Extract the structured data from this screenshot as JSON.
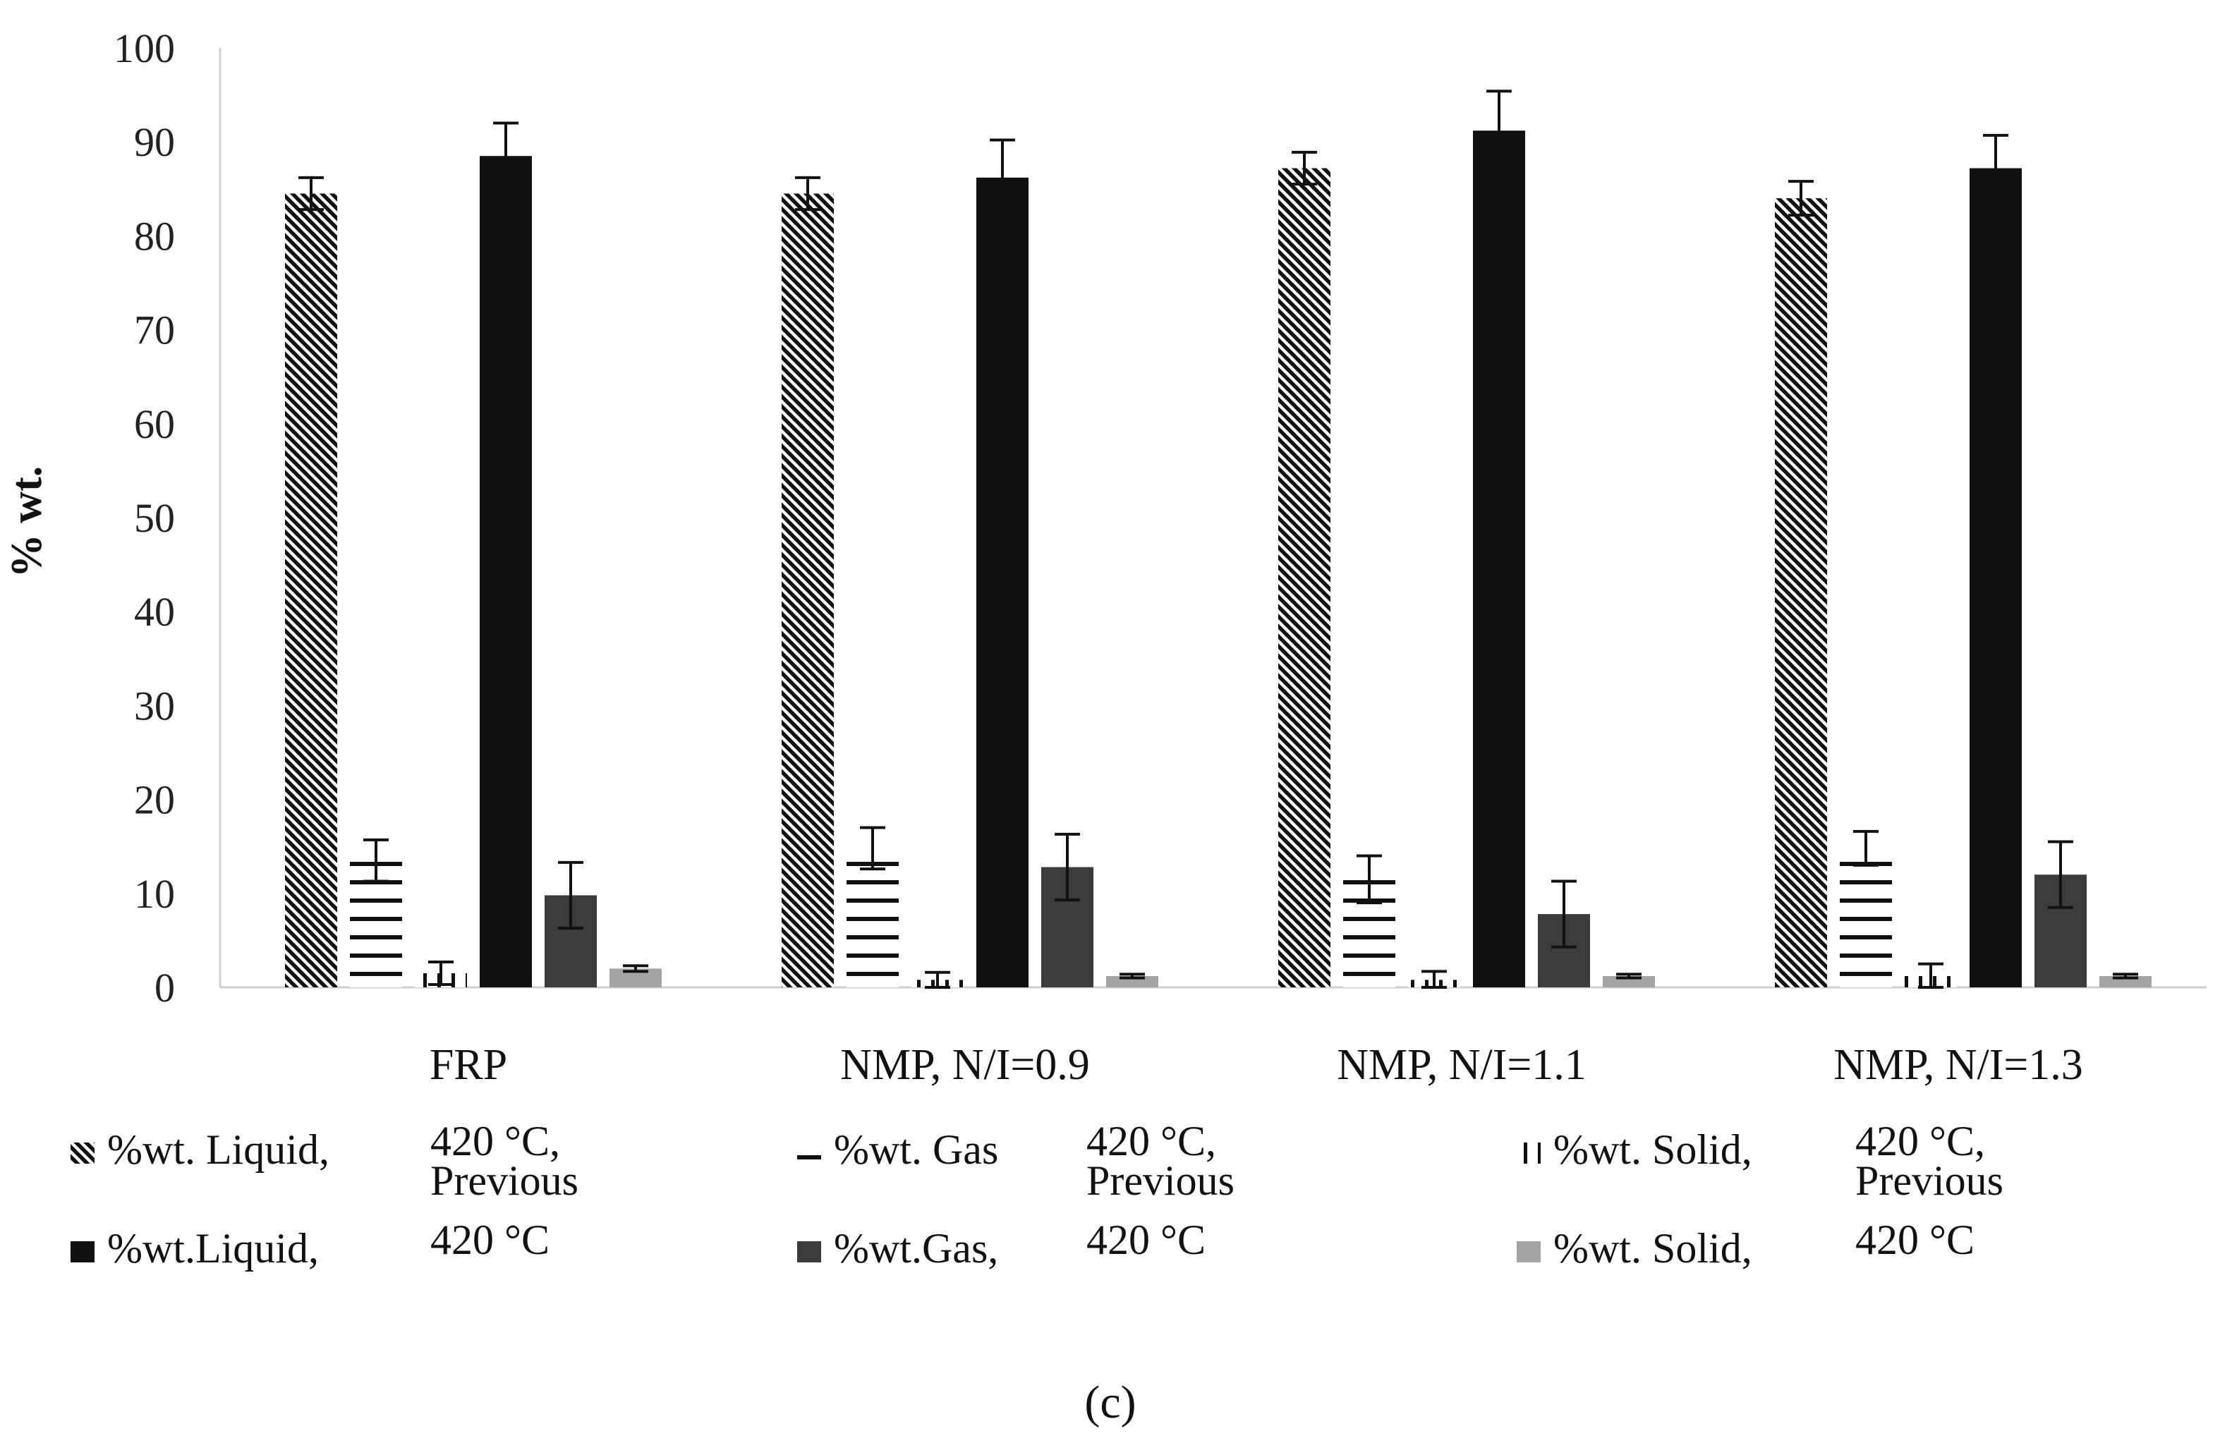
{
  "chart_data": {
    "type": "bar",
    "title": "",
    "xlabel": "",
    "ylabel": "% wt.",
    "ylim": [
      0,
      100
    ],
    "yticks": [
      0,
      10,
      20,
      30,
      40,
      50,
      60,
      70,
      80,
      90,
      100
    ],
    "grid": false,
    "legend_position": "bottom",
    "categories": [
      "FRP",
      "NMP, N/I=0.9",
      "NMP, N/I=1.1",
      "NMP, N/I=1.3"
    ],
    "series": [
      {
        "name": "%wt. Liquid,",
        "condition": [
          "420 °C,",
          "Previous"
        ],
        "pattern": "diagonal-hatch",
        "color": "#111111",
        "values": [
          84.5,
          84.5,
          87.2,
          84.0
        ],
        "errors": [
          1.7,
          1.7,
          1.7,
          1.8
        ]
      },
      {
        "name": "%wt. Gas",
        "condition": [
          "420 °C,",
          "Previous"
        ],
        "pattern": "horizontal-hatch",
        "color": "#111111",
        "values": [
          13.5,
          14.8,
          11.5,
          14.8
        ],
        "errors": [
          2.2,
          2.2,
          2.5,
          1.8
        ]
      },
      {
        "name": "%wt. Solid,",
        "condition": [
          "420 °C,",
          "Previous"
        ],
        "pattern": "vertical-hatch",
        "color": "#111111",
        "values": [
          1.5,
          0.8,
          0.8,
          1.2
        ],
        "errors": [
          1.2,
          0.8,
          0.9,
          1.3
        ]
      },
      {
        "name": "%wt.Liquid,",
        "condition": [
          "420 °C"
        ],
        "pattern": "solid",
        "color": "#111111",
        "values": [
          88.5,
          86.2,
          91.2,
          87.2
        ],
        "errors": [
          3.5,
          4.0,
          4.2,
          3.5
        ]
      },
      {
        "name": "%wt.Gas,",
        "condition": [
          "420 °C"
        ],
        "pattern": "solid",
        "color": "#3c3c3c",
        "values": [
          9.8,
          12.8,
          7.8,
          12.0
        ],
        "errors": [
          3.5,
          3.5,
          3.5,
          3.5
        ]
      },
      {
        "name": "%wt. Solid,",
        "condition": [
          "420 °C"
        ],
        "pattern": "solid",
        "color": "#a3a3a3",
        "values": [
          2.0,
          1.2,
          1.2,
          1.2
        ],
        "errors": [
          0.3,
          0.2,
          0.2,
          0.2
        ]
      }
    ]
  },
  "caption": "(c)"
}
